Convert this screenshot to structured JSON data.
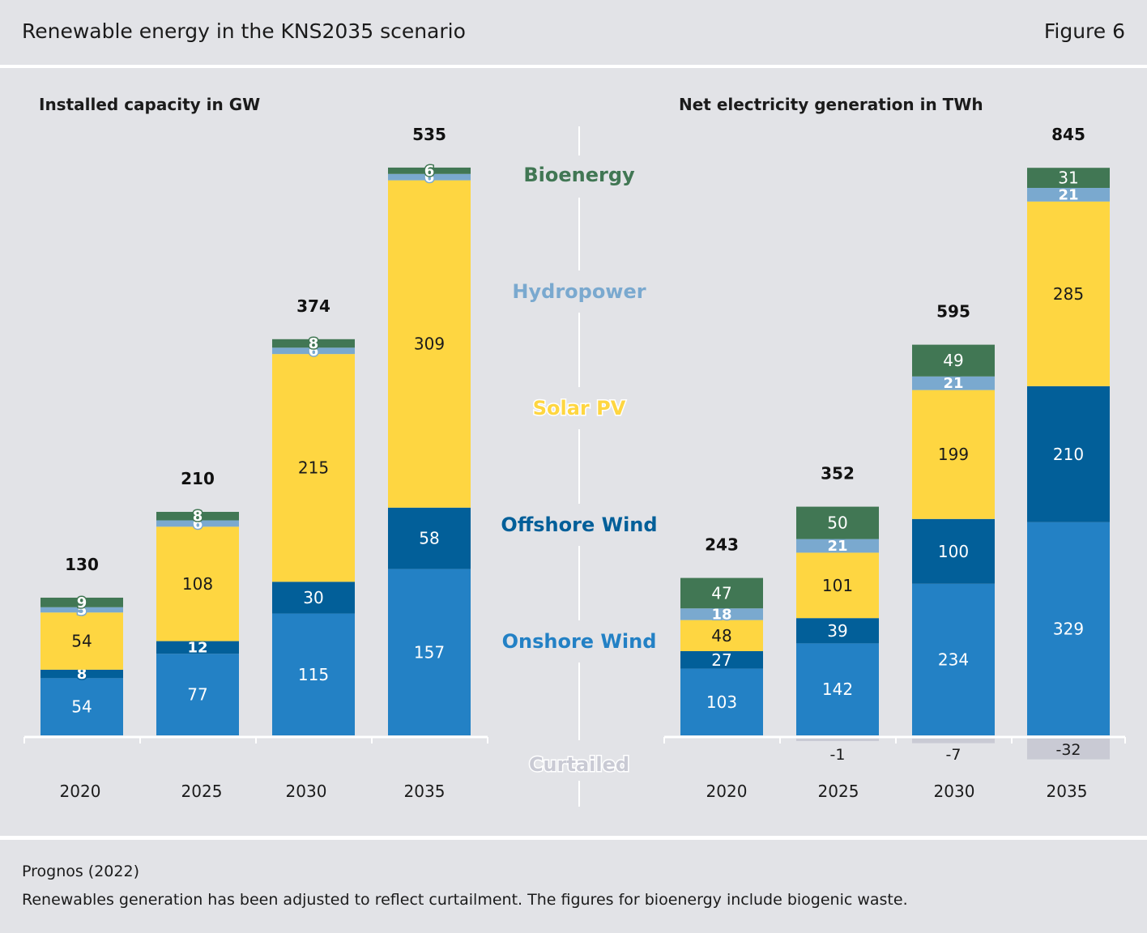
{
  "header": {
    "title": "Renewable energy in the KNS2035 scenario",
    "figure_number": "Figure 6"
  },
  "footer": {
    "source": "Prognos (2022)",
    "note": "Renewables generation has been adjusted to reflect curtailment. The figures for bioenergy include biogenic waste."
  },
  "colors": {
    "onshore": "#2381c5",
    "offshore": "#025f99",
    "solar": "#fed641",
    "hydro": "#7aa9cf",
    "bio": "#417754",
    "curtailed": "#c9cad4",
    "background": "#e2e3e7"
  },
  "legend": [
    {
      "key": "bio",
      "label": "Bioenergy",
      "color": "#417754"
    },
    {
      "key": "hydro",
      "label": "Hydropower",
      "color": "#7aa9cf"
    },
    {
      "key": "solar",
      "label": "Solar PV",
      "color": "#fed641"
    },
    {
      "key": "offshore",
      "label": "Offshore Wind",
      "color": "#025f99"
    },
    {
      "key": "onshore",
      "label": "Onshore Wind",
      "color": "#2381c5"
    },
    {
      "key": "curtailed",
      "label": "Curtailed",
      "color": "#c9cad4"
    }
  ],
  "chart_data": [
    {
      "type": "bar",
      "stacked": true,
      "title": "Installed capacity in GW",
      "categories": [
        "2020",
        "2025",
        "2030",
        "2035"
      ],
      "series": [
        {
          "name": "Onshore Wind",
          "key": "onshore",
          "values": [
            54,
            77,
            115,
            157
          ]
        },
        {
          "name": "Offshore Wind",
          "key": "offshore",
          "values": [
            8,
            12,
            30,
            58
          ]
        },
        {
          "name": "Solar PV",
          "key": "solar",
          "values": [
            54,
            108,
            215,
            309
          ]
        },
        {
          "name": "Hydropower",
          "key": "hydro",
          "values": [
            5,
            6,
            6,
            6
          ]
        },
        {
          "name": "Bioenergy",
          "key": "bio",
          "values": [
            9,
            8,
            8,
            6
          ]
        }
      ],
      "totals": [
        130,
        210,
        374,
        535
      ],
      "ylim": [
        0,
        560
      ]
    },
    {
      "type": "bar",
      "stacked": true,
      "title": "Net electricity generation in TWh",
      "categories": [
        "2020",
        "2025",
        "2030",
        "2035"
      ],
      "series": [
        {
          "name": "Onshore Wind",
          "key": "onshore",
          "values": [
            103,
            142,
            234,
            329
          ]
        },
        {
          "name": "Offshore Wind",
          "key": "offshore",
          "values": [
            27,
            39,
            100,
            210
          ]
        },
        {
          "name": "Solar PV",
          "key": "solar",
          "values": [
            48,
            101,
            199,
            285
          ]
        },
        {
          "name": "Hydropower",
          "key": "hydro",
          "values": [
            18,
            21,
            21,
            21
          ]
        },
        {
          "name": "Bioenergy",
          "key": "bio",
          "values": [
            47,
            50,
            49,
            31
          ]
        },
        {
          "name": "Curtailed",
          "key": "curtailed",
          "values": [
            0,
            -1,
            -7,
            -32
          ]
        }
      ],
      "totals": [
        243,
        352,
        595,
        845
      ],
      "curtailed_labels": [
        "",
        "-1",
        "-7",
        "-32"
      ],
      "ylim": [
        -40,
        880
      ]
    }
  ]
}
